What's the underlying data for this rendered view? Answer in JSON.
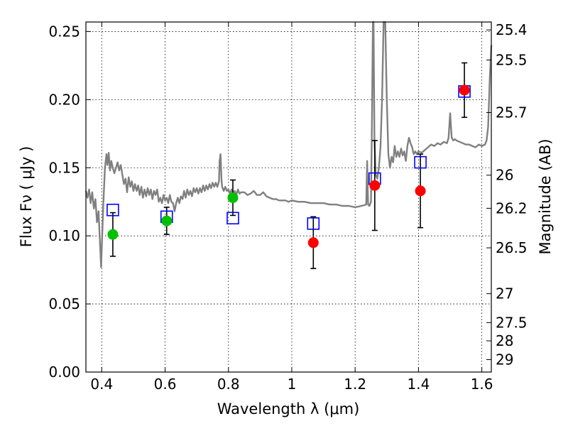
{
  "chart_data": {
    "type": "scatter",
    "xlabel": "Wavelength  λ (μm)",
    "ylabel": "Flux  Fν  ( μJy )",
    "ylabel_right": "Magnitude (AB)",
    "xlim": [
      0.35,
      1.63
    ],
    "ylim": [
      0.0,
      0.257
    ],
    "grid": true,
    "x_ticks": [
      {
        "value": 0.4,
        "label": "0.4"
      },
      {
        "value": 0.6,
        "label": "0.6"
      },
      {
        "value": 0.8,
        "label": "0.8"
      },
      {
        "value": 1.0,
        "label": "1"
      },
      {
        "value": 1.2,
        "label": "1.2"
      },
      {
        "value": 1.4,
        "label": "1.4"
      },
      {
        "value": 1.6,
        "label": "1.6"
      }
    ],
    "y_ticks": [
      {
        "value": 0.0,
        "label": "0.00"
      },
      {
        "value": 0.05,
        "label": "0.05"
      },
      {
        "value": 0.1,
        "label": "0.10"
      },
      {
        "value": 0.15,
        "label": "0.15"
      },
      {
        "value": 0.2,
        "label": "0.20"
      },
      {
        "value": 0.25,
        "label": "0.25"
      }
    ],
    "right_ticks": [
      {
        "value": 25.4,
        "label": "25.4"
      },
      {
        "value": 25.5,
        "label": "25.5"
      },
      {
        "value": 25.7,
        "label": "25.7"
      },
      {
        "value": 26.0,
        "label": "26"
      },
      {
        "value": 26.2,
        "label": "26.2"
      },
      {
        "value": 26.5,
        "label": "26.5"
      },
      {
        "value": 27.0,
        "label": "27"
      },
      {
        "value": 27.5,
        "label": "27.5"
      },
      {
        "value": 28.0,
        "label": "28"
      },
      {
        "value": 29.0,
        "label": "29"
      }
    ],
    "series": [
      {
        "kind": "model-spectrum",
        "color": "#808080",
        "points": [
          [
            0.35,
            0.133
          ],
          [
            0.355,
            0.128
          ],
          [
            0.36,
            0.134
          ],
          [
            0.365,
            0.124
          ],
          [
            0.37,
            0.132
          ],
          [
            0.375,
            0.12
          ],
          [
            0.38,
            0.127
          ],
          [
            0.385,
            0.11
          ],
          [
            0.39,
            0.118
          ],
          [
            0.395,
            0.092
          ],
          [
            0.398,
            0.077
          ],
          [
            0.401,
            0.098
          ],
          [
            0.405,
            0.123
          ],
          [
            0.41,
            0.15
          ],
          [
            0.415,
            0.16
          ],
          [
            0.418,
            0.152
          ],
          [
            0.422,
            0.161
          ],
          [
            0.426,
            0.148
          ],
          [
            0.43,
            0.155
          ],
          [
            0.435,
            0.15
          ],
          [
            0.44,
            0.146
          ],
          [
            0.445,
            0.15
          ],
          [
            0.45,
            0.154
          ],
          [
            0.455,
            0.148
          ],
          [
            0.46,
            0.152
          ],
          [
            0.465,
            0.145
          ],
          [
            0.47,
            0.138
          ],
          [
            0.475,
            0.142
          ],
          [
            0.48,
            0.132
          ],
          [
            0.485,
            0.143
          ],
          [
            0.49,
            0.136
          ],
          [
            0.495,
            0.14
          ],
          [
            0.5,
            0.133
          ],
          [
            0.505,
            0.138
          ],
          [
            0.51,
            0.133
          ],
          [
            0.515,
            0.137
          ],
          [
            0.52,
            0.13
          ],
          [
            0.525,
            0.136
          ],
          [
            0.53,
            0.128
          ],
          [
            0.535,
            0.134
          ],
          [
            0.54,
            0.129
          ],
          [
            0.545,
            0.135
          ],
          [
            0.55,
            0.13
          ],
          [
            0.555,
            0.134
          ],
          [
            0.56,
            0.127
          ],
          [
            0.565,
            0.133
          ],
          [
            0.57,
            0.13
          ],
          [
            0.575,
            0.134
          ],
          [
            0.58,
            0.125
          ],
          [
            0.585,
            0.128
          ],
          [
            0.59,
            0.124
          ],
          [
            0.595,
            0.13
          ],
          [
            0.6,
            0.126
          ],
          [
            0.605,
            0.128
          ],
          [
            0.61,
            0.124
          ],
          [
            0.615,
            0.13
          ],
          [
            0.62,
            0.125
          ],
          [
            0.625,
            0.124
          ],
          [
            0.63,
            0.118
          ],
          [
            0.635,
            0.124
          ],
          [
            0.64,
            0.128
          ],
          [
            0.645,
            0.124
          ],
          [
            0.65,
            0.129
          ],
          [
            0.655,
            0.127
          ],
          [
            0.66,
            0.133
          ],
          [
            0.665,
            0.128
          ],
          [
            0.67,
            0.134
          ],
          [
            0.675,
            0.13
          ],
          [
            0.68,
            0.133
          ],
          [
            0.685,
            0.129
          ],
          [
            0.69,
            0.135
          ],
          [
            0.695,
            0.132
          ],
          [
            0.7,
            0.135
          ],
          [
            0.705,
            0.131
          ],
          [
            0.71,
            0.135
          ],
          [
            0.715,
            0.132
          ],
          [
            0.72,
            0.137
          ],
          [
            0.725,
            0.133
          ],
          [
            0.73,
            0.137
          ],
          [
            0.735,
            0.134
          ],
          [
            0.74,
            0.138
          ],
          [
            0.745,
            0.135
          ],
          [
            0.75,
            0.139
          ],
          [
            0.755,
            0.136
          ],
          [
            0.76,
            0.139
          ],
          [
            0.765,
            0.136
          ],
          [
            0.77,
            0.14
          ],
          [
            0.772,
            0.155
          ],
          [
            0.775,
            0.16
          ],
          [
            0.778,
            0.142
          ],
          [
            0.78,
            0.136
          ],
          [
            0.785,
            0.133
          ],
          [
            0.79,
            0.136
          ],
          [
            0.795,
            0.133
          ],
          [
            0.8,
            0.134
          ],
          [
            0.805,
            0.131
          ],
          [
            0.81,
            0.134
          ],
          [
            0.815,
            0.131
          ],
          [
            0.82,
            0.133
          ],
          [
            0.825,
            0.13
          ],
          [
            0.83,
            0.134
          ],
          [
            0.835,
            0.131
          ],
          [
            0.84,
            0.132
          ],
          [
            0.85,
            0.132
          ],
          [
            0.86,
            0.13
          ],
          [
            0.87,
            0.131
          ],
          [
            0.88,
            0.133
          ],
          [
            0.89,
            0.13
          ],
          [
            0.9,
            0.13
          ],
          [
            0.91,
            0.132
          ],
          [
            0.92,
            0.129
          ],
          [
            0.93,
            0.128
          ],
          [
            0.94,
            0.127
          ],
          [
            0.95,
            0.127
          ],
          [
            0.96,
            0.126
          ],
          [
            0.97,
            0.126
          ],
          [
            0.98,
            0.126
          ],
          [
            0.99,
            0.125
          ],
          [
            1.0,
            0.126
          ],
          [
            1.02,
            0.125
          ],
          [
            1.04,
            0.125
          ],
          [
            1.06,
            0.124
          ],
          [
            1.08,
            0.124
          ],
          [
            1.1,
            0.124
          ],
          [
            1.12,
            0.123
          ],
          [
            1.14,
            0.123
          ],
          [
            1.16,
            0.122
          ],
          [
            1.18,
            0.122
          ],
          [
            1.2,
            0.121
          ],
          [
            1.22,
            0.122
          ],
          [
            1.235,
            0.123
          ],
          [
            1.238,
            0.155
          ],
          [
            1.241,
            0.123
          ],
          [
            1.245,
            0.122
          ],
          [
            1.25,
            0.125
          ],
          [
            1.253,
            0.18
          ],
          [
            1.256,
            0.257
          ],
          [
            1.258,
            0.257
          ],
          [
            1.261,
            0.17
          ],
          [
            1.265,
            0.145
          ],
          [
            1.27,
            0.142
          ],
          [
            1.275,
            0.15
          ],
          [
            1.28,
            0.165
          ],
          [
            1.285,
            0.2
          ],
          [
            1.29,
            0.257
          ],
          [
            1.295,
            0.257
          ],
          [
            1.3,
            0.2
          ],
          [
            1.305,
            0.16
          ],
          [
            1.31,
            0.15
          ],
          [
            1.315,
            0.158
          ],
          [
            1.32,
            0.154
          ],
          [
            1.325,
            0.166
          ],
          [
            1.33,
            0.158
          ],
          [
            1.335,
            0.162
          ],
          [
            1.34,
            0.158
          ],
          [
            1.345,
            0.164
          ],
          [
            1.35,
            0.159
          ],
          [
            1.355,
            0.162
          ],
          [
            1.36,
            0.155
          ],
          [
            1.365,
            0.166
          ],
          [
            1.37,
            0.172
          ],
          [
            1.375,
            0.168
          ],
          [
            1.38,
            0.165
          ],
          [
            1.385,
            0.16
          ],
          [
            1.39,
            0.162
          ],
          [
            1.395,
            0.16
          ],
          [
            1.4,
            0.162
          ],
          [
            1.41,
            0.161
          ],
          [
            1.42,
            0.163
          ],
          [
            1.43,
            0.165
          ],
          [
            1.44,
            0.167
          ],
          [
            1.45,
            0.166
          ],
          [
            1.46,
            0.168
          ],
          [
            1.47,
            0.167
          ],
          [
            1.48,
            0.169
          ],
          [
            1.49,
            0.168
          ],
          [
            1.495,
            0.172
          ],
          [
            1.5,
            0.19
          ],
          [
            1.505,
            0.172
          ],
          [
            1.51,
            0.17
          ],
          [
            1.515,
            0.171
          ],
          [
            1.52,
            0.17
          ],
          [
            1.53,
            0.169
          ],
          [
            1.54,
            0.168
          ],
          [
            1.55,
            0.167
          ],
          [
            1.56,
            0.167
          ],
          [
            1.57,
            0.166
          ],
          [
            1.58,
            0.165
          ],
          [
            1.59,
            0.167
          ],
          [
            1.6,
            0.166
          ],
          [
            1.61,
            0.167
          ],
          [
            1.615,
            0.17
          ],
          [
            1.62,
            0.18
          ],
          [
            1.625,
            0.215
          ],
          [
            1.63,
            0.24
          ]
        ]
      },
      {
        "kind": "model-photometry",
        "marker": "open-square",
        "color": "#0000ff",
        "points": [
          [
            0.435,
            0.119
          ],
          [
            0.605,
            0.114
          ],
          [
            0.814,
            0.113
          ],
          [
            1.068,
            0.109
          ],
          [
            1.262,
            0.142
          ],
          [
            1.406,
            0.154
          ],
          [
            1.545,
            0.206
          ]
        ]
      },
      {
        "kind": "observed",
        "marker": "circle",
        "color": "#00c000",
        "points": [
          {
            "x": 0.435,
            "y": 0.101,
            "err": 0.016
          },
          {
            "x": 0.605,
            "y": 0.111,
            "err": 0.01
          },
          {
            "x": 0.814,
            "y": 0.128,
            "err": 0.013
          }
        ]
      },
      {
        "kind": "observed",
        "marker": "circle",
        "color": "#ff0000",
        "points": [
          {
            "x": 1.068,
            "y": 0.095,
            "err": 0.019
          },
          {
            "x": 1.262,
            "y": 0.137,
            "err": 0.033
          },
          {
            "x": 1.406,
            "y": 0.133,
            "err": 0.027
          },
          {
            "x": 1.545,
            "y": 0.207,
            "err": 0.02
          }
        ]
      }
    ]
  }
}
